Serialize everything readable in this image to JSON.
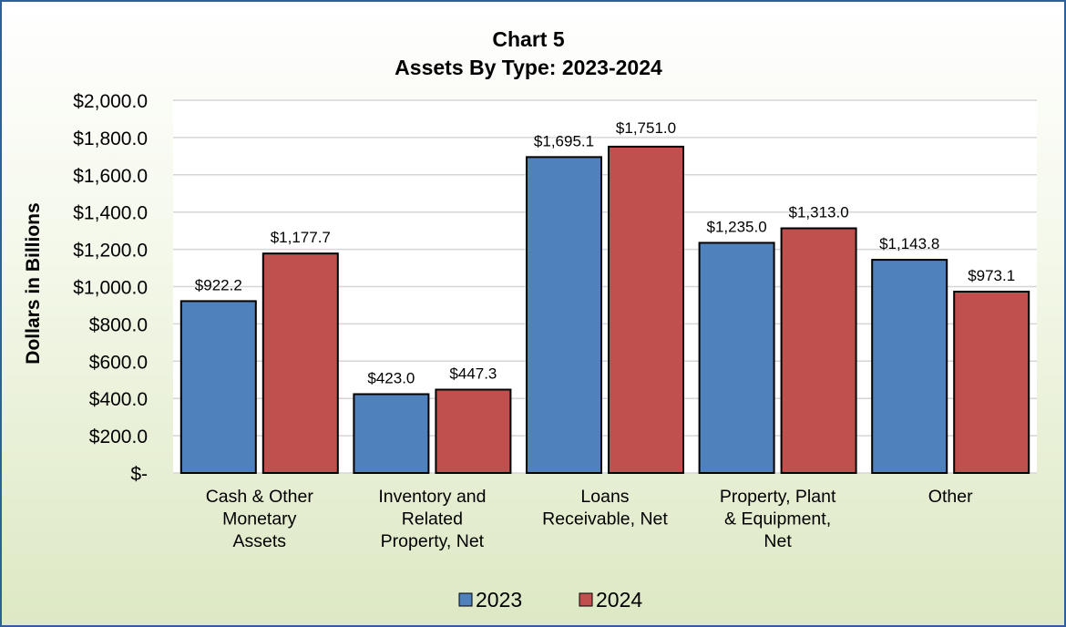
{
  "chart_data": {
    "type": "bar",
    "title": "Chart 5",
    "subtitle": "Assets By Type: 2023-2024",
    "xlabel": "",
    "ylabel": "Dollars in Billions",
    "ylim": [
      0,
      2000
    ],
    "yticks": [
      0,
      200,
      400,
      600,
      800,
      1000,
      1200,
      1400,
      1600,
      1800,
      2000
    ],
    "ytick_labels": [
      "$-",
      "$200.0",
      "$400.0",
      "$600.0",
      "$800.0",
      "$1,000.0",
      "$1,200.0",
      "$1,400.0",
      "$1,600.0",
      "$1,800.0",
      "$2,000.0"
    ],
    "grid": true,
    "legend_position": "bottom",
    "categories": [
      [
        "Cash & Other",
        "Monetary",
        "Assets"
      ],
      [
        "Inventory and",
        "Related",
        "Property, Net"
      ],
      [
        "Loans",
        "Receivable, Net"
      ],
      [
        "Property, Plant",
        "& Equipment,",
        "Net"
      ],
      [
        "Other"
      ]
    ],
    "series": [
      {
        "name": "2023",
        "color": "#4f81bd",
        "values": [
          922.2,
          423.0,
          1695.1,
          1235.0,
          1143.8
        ],
        "labels": [
          "$922.2",
          "$423.0",
          "$1,695.1",
          "$1,235.0",
          "$1,143.8"
        ]
      },
      {
        "name": "2024",
        "color": "#c0504d",
        "values": [
          1177.7,
          447.3,
          1751.0,
          1313.0,
          973.1
        ],
        "labels": [
          "$1,177.7",
          "$447.3",
          "$1,751.0",
          "$1,313.0",
          "$973.1"
        ]
      }
    ]
  }
}
